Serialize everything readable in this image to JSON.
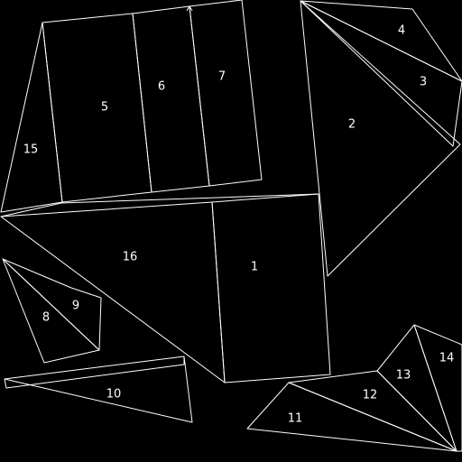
{
  "diagram": {
    "background": "#000000",
    "stroke_color": "#ffffff",
    "region_labels": [
      "1",
      "2",
      "3",
      "4",
      "5",
      "6",
      "7",
      "8",
      "9",
      "10",
      "11",
      "12",
      "13",
      "14",
      "15",
      "16"
    ]
  }
}
